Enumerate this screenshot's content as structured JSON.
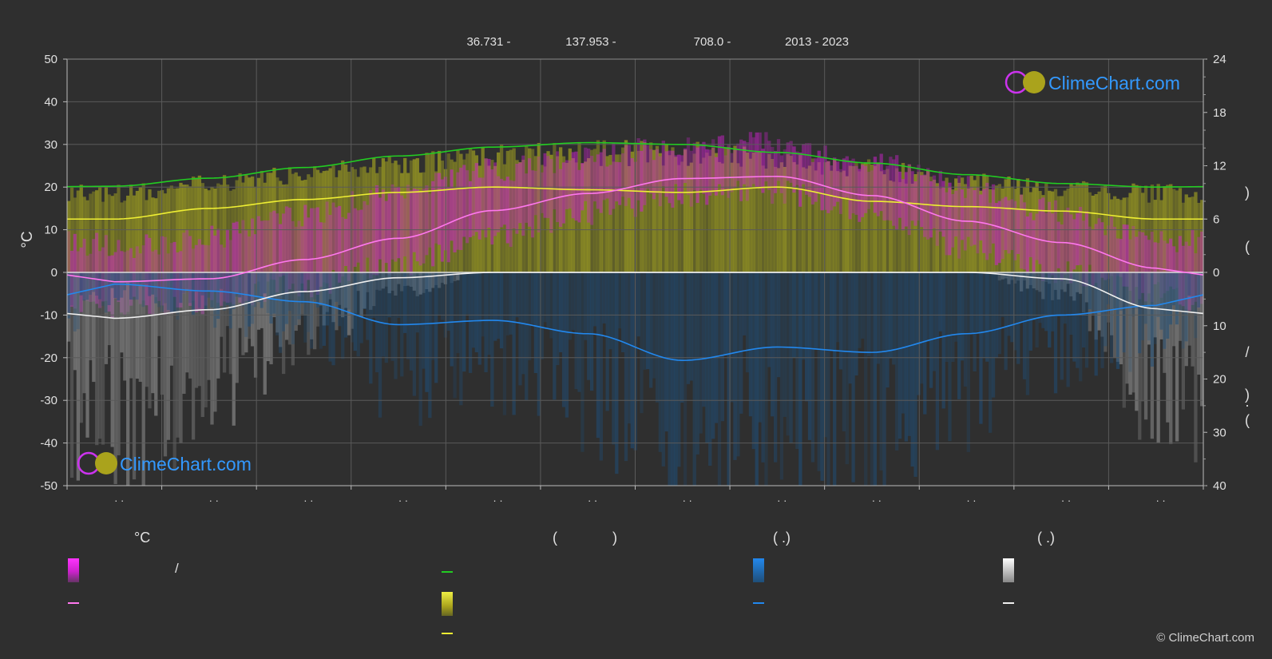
{
  "header": {
    "lat": "36.731 -",
    "lon": "137.953 -",
    "elev": "708.0 -",
    "years": "2013 - 2023"
  },
  "left_axis_label": "°C",
  "right_axis_text": {
    "a": ")",
    "b": "(",
    "c": "/",
    "d": ")",
    "e": "·",
    "f": "("
  },
  "logos": {
    "top": "ClimeChart.com",
    "bottom": "ClimeChart.com"
  },
  "legend": {
    "temp_head": "°C",
    "temp_slash": "/",
    "sun_head_open": "(",
    "sun_head_close": ")",
    "rain_head": "(   .)",
    "snow_head": "(   .)"
  },
  "copyright": "© ClimeChart.com",
  "colors": {
    "background": "#2f2f2f",
    "grid": "#5a5a5a",
    "daylight": "#22cc22",
    "sunshine": "#eeee33",
    "temp_mean": "#ff77ee",
    "temp_band": "#cc22cc",
    "sun_band": "#999922",
    "rain_line": "#2288ee",
    "rain_band": "#1f4e78",
    "snow_line": "#f0f0f0",
    "snow_band": "#888888",
    "logo_text": "#3399ff"
  },
  "chart_data": {
    "type": "line",
    "x_tick_labels": [
      "· ·",
      "· ·",
      "· ·",
      "· ·",
      "· ·",
      "· ·",
      "· ·",
      "· ·",
      "· ·",
      "· ·",
      "· ·",
      "· ·"
    ],
    "left_axis": {
      "unit": "°C",
      "ylim": [
        -50,
        50
      ],
      "ticks": [
        50,
        40,
        30,
        20,
        10,
        0,
        -10,
        -20,
        -30,
        -40,
        -50
      ]
    },
    "right_axis_top": {
      "ylim": [
        0,
        24
      ],
      "ticks": [
        24,
        18,
        12,
        6,
        0
      ]
    },
    "right_axis_bottom": {
      "ylim": [
        0,
        40
      ],
      "ticks": [
        10,
        20,
        30,
        40
      ]
    },
    "months_x": [
      0.5,
      1.5,
      2.5,
      3.5,
      4.5,
      5.5,
      6.5,
      7.5,
      8.5,
      9.5,
      10.5,
      11.5
    ],
    "series": [
      {
        "key": "daylight",
        "axis": "hours",
        "values": [
          9.7,
          10.6,
          11.8,
          13.1,
          14.1,
          14.6,
          14.4,
          13.5,
          12.3,
          11.0,
          10.0,
          9.6
        ]
      },
      {
        "key": "sunshine",
        "axis": "hours",
        "values": [
          6.0,
          7.2,
          8.2,
          9.0,
          9.6,
          9.3,
          9.0,
          9.6,
          8.0,
          7.4,
          6.9,
          6.0
        ]
      },
      {
        "key": "temp_mean",
        "axis": "temp",
        "values": [
          -2.2,
          -1.5,
          3.0,
          8.0,
          14.5,
          18.5,
          22.0,
          22.5,
          18.0,
          12.0,
          7.0,
          1.0
        ]
      },
      {
        "key": "rain",
        "axis": "precip",
        "values": [
          2.2,
          3.5,
          5.5,
          9.8,
          9.0,
          11.5,
          16.5,
          14.0,
          15.0,
          11.5,
          8.0,
          6.2
        ]
      },
      {
        "key": "snow",
        "axis": "precip",
        "values": [
          8.6,
          7.0,
          3.6,
          1.0,
          0.0,
          0.0,
          0.0,
          0.0,
          0.0,
          0.0,
          1.2,
          6.8
        ]
      }
    ],
    "temp_band": {
      "max": [
        6,
        8,
        13,
        19,
        24,
        27,
        30,
        30,
        26,
        20,
        14,
        8
      ],
      "min": [
        -8,
        -7,
        -3,
        2,
        8,
        14,
        18,
        19,
        14,
        6,
        0,
        -5
      ]
    }
  }
}
